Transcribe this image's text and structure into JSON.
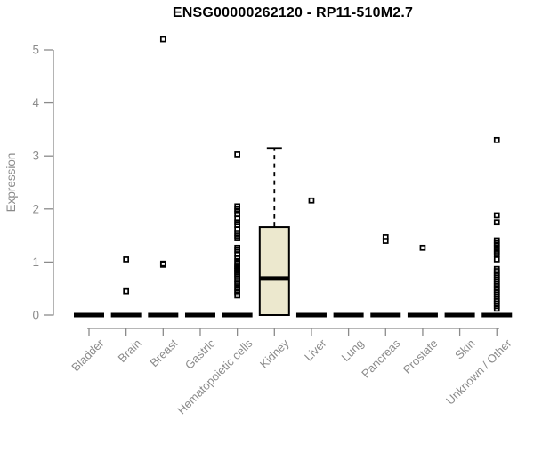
{
  "page": {
    "background": "#ffffff"
  },
  "chart_data": {
    "type": "boxplot",
    "title": "ENSG00000262120 - RP11-510M2.7",
    "xlabel": "",
    "ylabel": "Expression",
    "ylim": [
      0,
      5.3
    ],
    "yticks": [
      0,
      1,
      2,
      3,
      4,
      5
    ],
    "grid": false,
    "legend": false,
    "categories": [
      "Bladder",
      "Brain",
      "Breast",
      "Gastric",
      "Hematopoietic cells",
      "Kidney",
      "Liver",
      "Lung",
      "Pancreas",
      "Prostate",
      "Skin",
      "Unknown / Other"
    ],
    "boxes": [
      {
        "category": "Bladder",
        "q1": 0,
        "median": 0,
        "q3": 0,
        "whisker_low": 0,
        "whisker_high": 0,
        "outliers": []
      },
      {
        "category": "Brain",
        "q1": 0,
        "median": 0,
        "q3": 0,
        "whisker_low": 0,
        "whisker_high": 0,
        "outliers": [
          1.05,
          0.45
        ]
      },
      {
        "category": "Breast",
        "q1": 0,
        "median": 0,
        "q3": 0,
        "whisker_low": 0,
        "whisker_high": 0,
        "outliers": [
          5.2,
          0.97,
          0.95
        ]
      },
      {
        "category": "Gastric",
        "q1": 0,
        "median": 0,
        "q3": 0,
        "whisker_low": 0,
        "whisker_high": 0,
        "outliers": []
      },
      {
        "category": "Hematopoietic cells",
        "q1": 0,
        "median": 0,
        "q3": 0,
        "whisker_low": 0,
        "whisker_high": 0,
        "outliers": [
          3.03,
          2.05,
          2.0,
          1.95,
          1.9,
          1.82,
          1.75,
          1.7,
          1.62,
          1.55,
          1.5,
          1.45,
          1.27,
          1.22,
          1.15,
          1.08,
          1.02,
          0.97,
          0.93,
          0.9,
          0.87,
          0.84,
          0.8,
          0.77,
          0.73,
          0.68,
          0.63,
          0.58,
          0.52,
          0.47,
          0.42,
          0.37
        ]
      },
      {
        "category": "Kidney",
        "q1": 0,
        "median": 0.69,
        "q3": 1.66,
        "whisker_low": 0,
        "whisker_high": 3.15,
        "outliers": []
      },
      {
        "category": "Liver",
        "q1": 0,
        "median": 0,
        "q3": 0,
        "whisker_low": 0,
        "whisker_high": 0,
        "outliers": [
          2.16
        ]
      },
      {
        "category": "Lung",
        "q1": 0,
        "median": 0,
        "q3": 0,
        "whisker_low": 0,
        "whisker_high": 0,
        "outliers": []
      },
      {
        "category": "Pancreas",
        "q1": 0,
        "median": 0,
        "q3": 0,
        "whisker_low": 0,
        "whisker_high": 0,
        "outliers": [
          1.47,
          1.4
        ]
      },
      {
        "category": "Prostate",
        "q1": 0,
        "median": 0,
        "q3": 0,
        "whisker_low": 0,
        "whisker_high": 0,
        "outliers": [
          1.27
        ]
      },
      {
        "category": "Skin",
        "q1": 0,
        "median": 0,
        "q3": 0,
        "whisker_low": 0,
        "whisker_high": 0,
        "outliers": []
      },
      {
        "category": "Unknown / Other",
        "q1": 0,
        "median": 0,
        "q3": 0,
        "whisker_low": 0,
        "whisker_high": 0,
        "outliers": [
          3.3,
          1.88,
          1.75,
          1.41,
          1.36,
          1.31,
          1.26,
          1.2,
          1.15,
          1.05,
          0.87,
          0.83,
          0.79,
          0.75,
          0.71,
          0.67,
          0.63,
          0.59,
          0.55,
          0.51,
          0.47,
          0.43,
          0.39,
          0.35,
          0.3,
          0.26,
          0.22,
          0.17,
          0.12
        ]
      }
    ],
    "colors": {
      "box_fill": "#ece8ce",
      "box_border": "#000000",
      "median": "#000000",
      "zero_bar": "#000000",
      "outlier": "#000000",
      "axis": "#8b8b8b",
      "tick_text": "#8b8b8b",
      "title_text": "#000000"
    }
  }
}
